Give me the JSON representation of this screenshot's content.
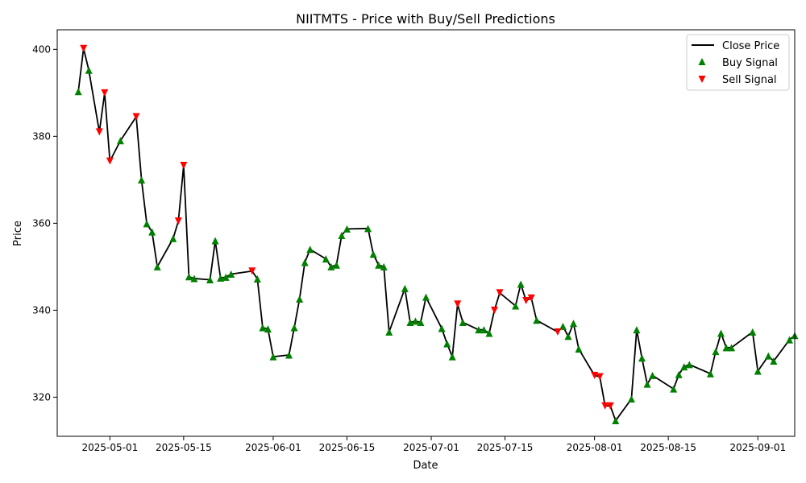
{
  "chart_data": {
    "type": "line",
    "title": "NIITMTS - Price with Buy/Sell Predictions",
    "xlabel": "Date",
    "ylabel": "Price",
    "xlim": [
      "2025-04-21",
      "2025-09-08"
    ],
    "ylim": [
      311,
      404.5
    ],
    "x_ticks": [
      "2025-05-01",
      "2025-05-15",
      "2025-06-01",
      "2025-06-15",
      "2025-07-01",
      "2025-07-15",
      "2025-08-01",
      "2025-08-15",
      "2025-09-01"
    ],
    "y_ticks": [
      320,
      340,
      360,
      380,
      400
    ],
    "grid": false,
    "legend_position": "top-right",
    "legend": [
      "Close Price",
      "Buy Signal",
      "Sell Signal"
    ],
    "colors": {
      "close": "#000000",
      "buy": "#008000",
      "sell": "#ff0000"
    },
    "series": [
      {
        "name": "Close Price",
        "points": [
          [
            "2025-04-25",
            390.3
          ],
          [
            "2025-04-26",
            400.2
          ],
          [
            "2025-04-27",
            395.2
          ],
          [
            "2025-04-29",
            381.0
          ],
          [
            "2025-04-30",
            390.0
          ],
          [
            "2025-05-01",
            374.3
          ],
          [
            "2025-05-03",
            379.0
          ],
          [
            "2025-05-06",
            384.5
          ],
          [
            "2025-05-07",
            370.0
          ],
          [
            "2025-05-08",
            359.9
          ],
          [
            "2025-05-09",
            358.0
          ],
          [
            "2025-05-10",
            350.0
          ],
          [
            "2025-05-13",
            356.5
          ],
          [
            "2025-05-14",
            360.5
          ],
          [
            "2025-05-15",
            373.3
          ],
          [
            "2025-05-16",
            347.7
          ],
          [
            "2025-05-17",
            347.3
          ],
          [
            "2025-05-20",
            347.0
          ],
          [
            "2025-05-21",
            356.0
          ],
          [
            "2025-05-22",
            347.4
          ],
          [
            "2025-05-23",
            347.6
          ],
          [
            "2025-05-24",
            348.3
          ],
          [
            "2025-05-28",
            349.0
          ],
          [
            "2025-05-29",
            347.2
          ],
          [
            "2025-05-30",
            336.0
          ],
          [
            "2025-05-31",
            335.7
          ],
          [
            "2025-06-01",
            329.3
          ],
          [
            "2025-06-04",
            329.7
          ],
          [
            "2025-06-05",
            336.0
          ],
          [
            "2025-06-06",
            342.6
          ],
          [
            "2025-06-07",
            351.0
          ],
          [
            "2025-06-08",
            354.0
          ],
          [
            "2025-06-11",
            351.8
          ],
          [
            "2025-06-12",
            350.0
          ],
          [
            "2025-06-13",
            350.4
          ],
          [
            "2025-06-14",
            357.2
          ],
          [
            "2025-06-15",
            358.7
          ],
          [
            "2025-06-19",
            358.8
          ],
          [
            "2025-06-20",
            352.9
          ],
          [
            "2025-06-21",
            350.4
          ],
          [
            "2025-06-22",
            350.0
          ],
          [
            "2025-06-23",
            335.0
          ],
          [
            "2025-06-26",
            345.0
          ],
          [
            "2025-06-27",
            337.2
          ],
          [
            "2025-06-28",
            337.5
          ],
          [
            "2025-06-29",
            337.2
          ],
          [
            "2025-06-30",
            343.0
          ],
          [
            "2025-07-03",
            335.8
          ],
          [
            "2025-07-04",
            332.3
          ],
          [
            "2025-07-05",
            329.3
          ],
          [
            "2025-07-06",
            341.4
          ],
          [
            "2025-07-07",
            337.2
          ],
          [
            "2025-07-10",
            335.5
          ],
          [
            "2025-07-11",
            335.5
          ],
          [
            "2025-07-12",
            334.7
          ],
          [
            "2025-07-13",
            340.0
          ],
          [
            "2025-07-14",
            344.0
          ],
          [
            "2025-07-17",
            341.0
          ],
          [
            "2025-07-18",
            346.0
          ],
          [
            "2025-07-19",
            342.2
          ],
          [
            "2025-07-20",
            342.8
          ],
          [
            "2025-07-21",
            337.7
          ],
          [
            "2025-07-25",
            335.0
          ],
          [
            "2025-07-26",
            336.3
          ],
          [
            "2025-07-27",
            334.0
          ],
          [
            "2025-07-28",
            337.0
          ],
          [
            "2025-07-29",
            331.1
          ],
          [
            "2025-08-01",
            325.0
          ],
          [
            "2025-08-02",
            324.7
          ],
          [
            "2025-08-03",
            318.0
          ],
          [
            "2025-08-04",
            318.0
          ],
          [
            "2025-08-05",
            314.6
          ],
          [
            "2025-08-08",
            319.6
          ],
          [
            "2025-08-09",
            335.5
          ],
          [
            "2025-08-10",
            329.0
          ],
          [
            "2025-08-11",
            323.0
          ],
          [
            "2025-08-12",
            325.0
          ],
          [
            "2025-08-16",
            321.9
          ],
          [
            "2025-08-17",
            325.2
          ],
          [
            "2025-08-18",
            327.0
          ],
          [
            "2025-08-19",
            327.5
          ],
          [
            "2025-08-23",
            325.4
          ],
          [
            "2025-08-24",
            330.5
          ],
          [
            "2025-08-25",
            334.7
          ],
          [
            "2025-08-26",
            331.4
          ],
          [
            "2025-08-27",
            331.4
          ],
          [
            "2025-08-31",
            335.0
          ],
          [
            "2025-09-01",
            326.0
          ],
          [
            "2025-09-03",
            329.5
          ],
          [
            "2025-09-04",
            328.3
          ],
          [
            "2025-09-07",
            333.2
          ],
          [
            "2025-09-08",
            334.2
          ]
        ]
      },
      {
        "name": "Buy Signal",
        "points": [
          [
            "2025-04-25",
            390.3
          ],
          [
            "2025-04-27",
            395.2
          ],
          [
            "2025-05-03",
            379.0
          ],
          [
            "2025-05-07",
            370.0
          ],
          [
            "2025-05-08",
            359.9
          ],
          [
            "2025-05-09",
            358.0
          ],
          [
            "2025-05-10",
            350.0
          ],
          [
            "2025-05-13",
            356.5
          ],
          [
            "2025-05-16",
            347.7
          ],
          [
            "2025-05-17",
            347.3
          ],
          [
            "2025-05-20",
            347.0
          ],
          [
            "2025-05-21",
            356.0
          ],
          [
            "2025-05-22",
            347.4
          ],
          [
            "2025-05-23",
            347.6
          ],
          [
            "2025-05-24",
            348.3
          ],
          [
            "2025-05-29",
            347.2
          ],
          [
            "2025-05-30",
            336.0
          ],
          [
            "2025-05-31",
            335.7
          ],
          [
            "2025-06-01",
            329.3
          ],
          [
            "2025-06-04",
            329.7
          ],
          [
            "2025-06-05",
            336.0
          ],
          [
            "2025-06-06",
            342.6
          ],
          [
            "2025-06-07",
            351.0
          ],
          [
            "2025-06-08",
            354.0
          ],
          [
            "2025-06-11",
            351.8
          ],
          [
            "2025-06-12",
            350.0
          ],
          [
            "2025-06-13",
            350.4
          ],
          [
            "2025-06-14",
            357.2
          ],
          [
            "2025-06-15",
            358.7
          ],
          [
            "2025-06-19",
            358.8
          ],
          [
            "2025-06-20",
            352.9
          ],
          [
            "2025-06-21",
            350.4
          ],
          [
            "2025-06-22",
            350.0
          ],
          [
            "2025-06-23",
            335.0
          ],
          [
            "2025-06-26",
            345.0
          ],
          [
            "2025-06-27",
            337.2
          ],
          [
            "2025-06-28",
            337.5
          ],
          [
            "2025-06-29",
            337.2
          ],
          [
            "2025-06-30",
            343.0
          ],
          [
            "2025-07-03",
            335.8
          ],
          [
            "2025-07-04",
            332.3
          ],
          [
            "2025-07-05",
            329.3
          ],
          [
            "2025-07-07",
            337.2
          ],
          [
            "2025-07-10",
            335.5
          ],
          [
            "2025-07-11",
            335.5
          ],
          [
            "2025-07-12",
            334.7
          ],
          [
            "2025-07-17",
            341.0
          ],
          [
            "2025-07-18",
            346.0
          ],
          [
            "2025-07-21",
            337.7
          ],
          [
            "2025-07-26",
            336.3
          ],
          [
            "2025-07-27",
            334.0
          ],
          [
            "2025-07-28",
            337.0
          ],
          [
            "2025-07-29",
            331.1
          ],
          [
            "2025-08-05",
            314.6
          ],
          [
            "2025-08-08",
            319.6
          ],
          [
            "2025-08-09",
            335.5
          ],
          [
            "2025-08-10",
            329.0
          ],
          [
            "2025-08-11",
            323.0
          ],
          [
            "2025-08-12",
            325.0
          ],
          [
            "2025-08-16",
            321.9
          ],
          [
            "2025-08-17",
            325.2
          ],
          [
            "2025-08-18",
            327.0
          ],
          [
            "2025-08-19",
            327.5
          ],
          [
            "2025-08-23",
            325.4
          ],
          [
            "2025-08-24",
            330.5
          ],
          [
            "2025-08-25",
            334.7
          ],
          [
            "2025-08-26",
            331.4
          ],
          [
            "2025-08-27",
            331.4
          ],
          [
            "2025-08-31",
            335.0
          ],
          [
            "2025-09-01",
            326.0
          ],
          [
            "2025-09-03",
            329.5
          ],
          [
            "2025-09-04",
            328.3
          ],
          [
            "2025-09-07",
            333.2
          ],
          [
            "2025-09-08",
            334.2
          ]
        ]
      },
      {
        "name": "Sell Signal",
        "points": [
          [
            "2025-04-26",
            400.2
          ],
          [
            "2025-04-29",
            381.0
          ],
          [
            "2025-04-30",
            390.0
          ],
          [
            "2025-05-01",
            374.3
          ],
          [
            "2025-05-06",
            384.5
          ],
          [
            "2025-05-14",
            360.5
          ],
          [
            "2025-05-15",
            373.3
          ],
          [
            "2025-05-28",
            349.0
          ],
          [
            "2025-07-06",
            341.4
          ],
          [
            "2025-07-13",
            340.0
          ],
          [
            "2025-07-14",
            344.0
          ],
          [
            "2025-07-19",
            342.2
          ],
          [
            "2025-07-20",
            342.8
          ],
          [
            "2025-07-25",
            335.0
          ],
          [
            "2025-08-01",
            325.0
          ],
          [
            "2025-08-02",
            324.7
          ],
          [
            "2025-08-03",
            318.0
          ],
          [
            "2025-08-04",
            318.0
          ]
        ]
      }
    ]
  }
}
